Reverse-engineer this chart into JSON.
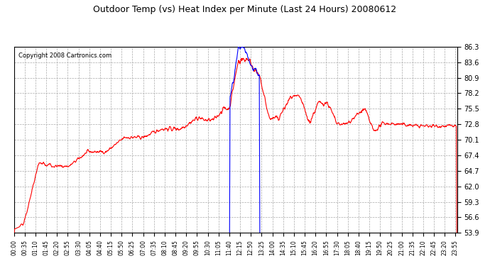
{
  "title": "Outdoor Temp (vs) Heat Index per Minute (Last 24 Hours) 20080612",
  "copyright": "Copyright 2008 Cartronics.com",
  "yticks": [
    53.9,
    56.6,
    59.3,
    62.0,
    64.7,
    67.4,
    70.1,
    72.8,
    75.5,
    78.2,
    80.9,
    83.6,
    86.3
  ],
  "ymin": 53.9,
  "ymax": 86.3,
  "background_color": "#ffffff",
  "plot_bg_color": "#ffffff",
  "grid_color": "#aaaaaa",
  "red_color": "#ff0000",
  "blue_color": "#0000ff",
  "xtick_labels": [
    "00:00",
    "00:35",
    "01:10",
    "01:45",
    "02:20",
    "02:55",
    "03:30",
    "04:05",
    "04:40",
    "05:15",
    "05:50",
    "06:25",
    "07:00",
    "07:35",
    "08:10",
    "08:45",
    "09:20",
    "09:55",
    "10:30",
    "11:05",
    "11:40",
    "12:15",
    "12:50",
    "13:25",
    "14:00",
    "14:35",
    "15:10",
    "15:45",
    "16:20",
    "16:55",
    "17:30",
    "18:05",
    "18:40",
    "19:15",
    "19:50",
    "20:25",
    "21:00",
    "21:35",
    "22:10",
    "22:45",
    "23:20",
    "23:55"
  ]
}
